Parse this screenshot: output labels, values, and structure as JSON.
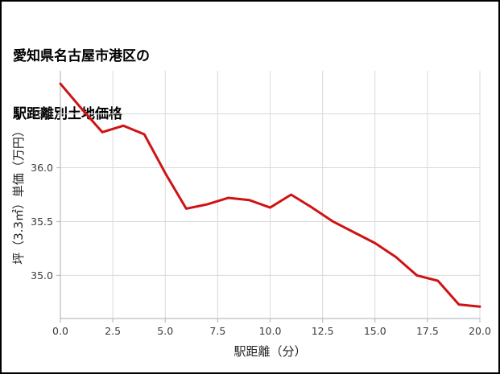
{
  "title": {
    "line1": "愛知県名古屋市港区の",
    "line2": "駅距離別土地価格"
  },
  "chart_data": {
    "type": "line",
    "x": [
      0,
      1,
      2,
      3,
      4,
      5,
      6,
      7,
      8,
      9,
      10,
      11,
      12,
      13,
      14,
      15,
      16,
      17,
      18,
      19,
      20
    ],
    "values": [
      36.78,
      36.55,
      36.33,
      36.39,
      36.31,
      35.95,
      35.62,
      35.66,
      35.72,
      35.7,
      35.63,
      35.75,
      35.63,
      35.5,
      35.4,
      35.3,
      35.17,
      35.0,
      34.95,
      34.73,
      34.71
    ],
    "title": "愛知県名古屋市港区の駅距離別土地価格",
    "xlabel": "駅距離（分）",
    "ylabel": "坪（3.3㎡）単価（万円）",
    "xlim": [
      0,
      20
    ],
    "ylim": [
      34.6,
      36.9
    ],
    "xtick_labels": [
      "0.0",
      "2.5",
      "5.0",
      "7.5",
      "10.0",
      "12.5",
      "15.0",
      "17.5",
      "20.0"
    ],
    "ytick_labels": [
      "35.0",
      "35.5",
      "36.0",
      "36.5"
    ],
    "grid": true,
    "legend": false,
    "colors": {
      "line": "#cf1314",
      "grid": "#dadada",
      "spine": "#b7bfc6",
      "tick_text": "#3a3a3a",
      "background": "#ffffff",
      "border": "#000000"
    }
  }
}
